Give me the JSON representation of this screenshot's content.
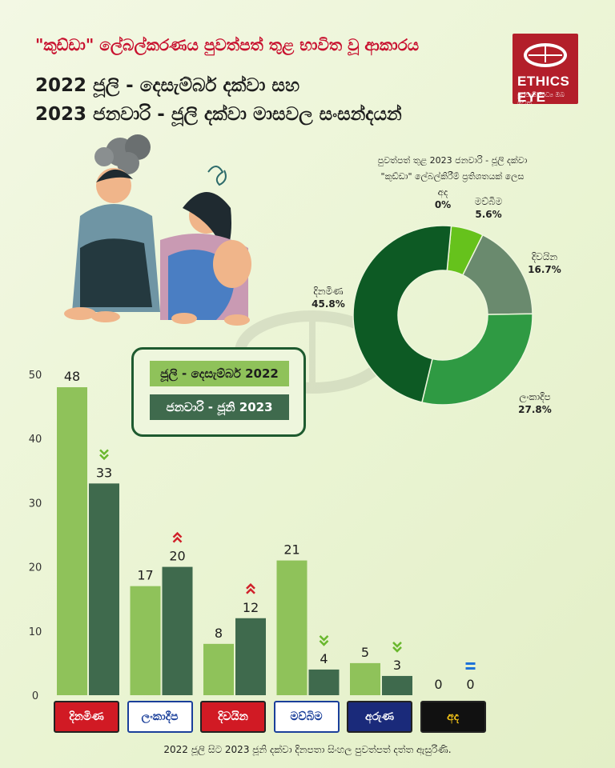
{
  "header": {
    "title1": "\"කුඩ්ඩා\" ලේබල්කරණය පුවත්පත් තුළ භාවිත වූ ආකාරය",
    "title2": "2022 ජූලි - දෙසැම්බර් දක්වා සහ",
    "title3": "2023 ජනවාරි - ජූලි දක්වා මාසවල සංසන්දයන්"
  },
  "logo": {
    "name": "ETHICS EYE",
    "sub": "පුරවැසි මාධ්‍ය ඔබ වෙත"
  },
  "legend": {
    "series1": "ජූලි - දෙසැම්බර් 2022",
    "series2": "ජනවාරි - ජූනි 2023"
  },
  "footer": "2022 ජූලි සිට 2023 ජූනි දක්වා දිනපතා සිංහල පුවත්පත් දත්ත ඇසුරිණි.",
  "chart_data": [
    {
      "type": "bar",
      "categories": [
        "දිනමිණ",
        "ලංකාදීප",
        "දිවයින",
        "මව්බිම",
        "අරුණ",
        "අද"
      ],
      "series": [
        {
          "name": "ජූලි - දෙසැම්බර් 2022",
          "values": [
            48,
            17,
            8,
            21,
            5,
            0
          ],
          "color": "#8fc25a"
        },
        {
          "name": "ජනවාරි - ජූනි 2023",
          "values": [
            33,
            20,
            12,
            4,
            3,
            0
          ],
          "color": "#3f6a4d"
        }
      ],
      "trend": [
        "down",
        "up",
        "up",
        "down",
        "down",
        "equal"
      ],
      "trend_colors": {
        "down": "#6ab82e",
        "up": "#d0202a",
        "equal": "#1e73d8"
      },
      "ylim": [
        0,
        50
      ],
      "yticks": [
        0,
        10,
        20,
        30,
        40,
        50
      ],
      "grid": false
    },
    {
      "type": "pie",
      "title": "පුවත්පත් තුළ 2023 ජනවාරි - ජූලි දක්වා",
      "subtitle": "\"කුඩ්ඩා\" ලේබල්කිරීම් ප්‍රතිශතයක් ලෙස",
      "slices": [
        {
          "label": "අද",
          "value": 0,
          "text": "0%",
          "color": "#9ed66a"
        },
        {
          "label": "මව්බිම",
          "value": 5.6,
          "text": "5.6%",
          "color": "#66c21c"
        },
        {
          "label": "දිවයින",
          "value": 16.7,
          "text": "16.7%",
          "color": "#6a8a6e"
        },
        {
          "label": "ලංකාදීප",
          "value": 27.8,
          "text": "27.8%",
          "color": "#2f9a43"
        },
        {
          "label": "දිනමිණ",
          "value": 45.8,
          "text": "45.8%",
          "color": "#0d5a24"
        }
      ],
      "first_slice_color": "#9ed66a"
    }
  ],
  "paper_logos": [
    {
      "name": "දිනමිණ",
      "bg": "#d11a24",
      "fg": "#ffffff"
    },
    {
      "name": "ලංකාදීප",
      "bg": "#ffffff",
      "fg": "#1a3f9a"
    },
    {
      "name": "දිවයින",
      "bg": "#d11a24",
      "fg": "#ffffff"
    },
    {
      "name": "මව්බිම",
      "bg": "#ffffff",
      "fg": "#1a3f9a"
    },
    {
      "name": "අරුණ",
      "bg": "#1a2a7a",
      "fg": "#ffffff"
    },
    {
      "name": "අද",
      "bg": "#111111",
      "fg": "#f5c518"
    }
  ]
}
